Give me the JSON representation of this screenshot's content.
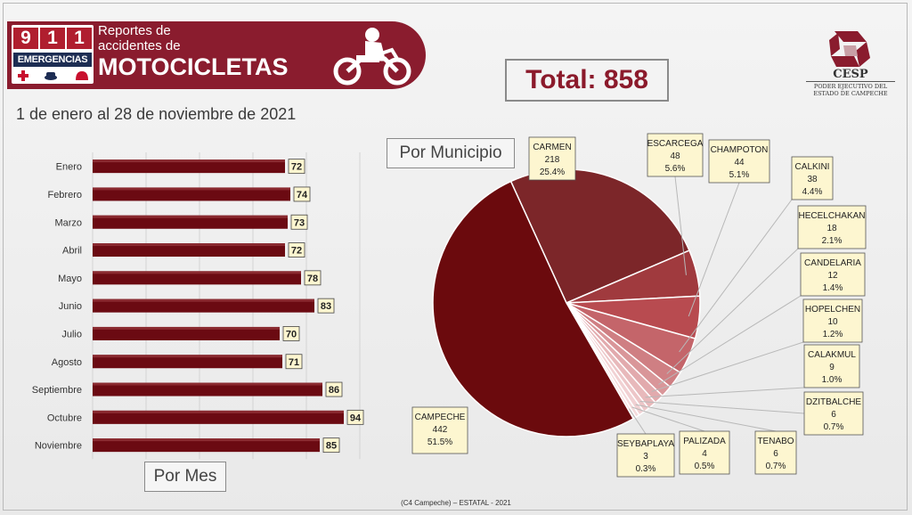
{
  "header": {
    "logo_digits": [
      "9",
      "1",
      "1"
    ],
    "logo_subtext": "EMERGENCIAS",
    "subtitle_line1": "Reportes de",
    "subtitle_line2": "accidentes de",
    "title": "MOTOCICLETAS"
  },
  "org": {
    "name": "CESP",
    "line1": "PODER EJECUTIVO DEL",
    "line2": "ESTADO DE CAMPECHE"
  },
  "total_label": "Total: 858",
  "date_range": "1 de enero al 28 de noviembre de 2021",
  "source": "(C4 Campeche) – ESTATAL - 2021",
  "colors": {
    "brand": "#8a1c2e",
    "bar": "#6b0a12",
    "label_bg": "#fdf6d0"
  },
  "chart_data": [
    {
      "type": "bar",
      "orientation": "horizontal",
      "title": "Por Mes",
      "categories": [
        "Enero",
        "Febrero",
        "Marzo",
        "Abril",
        "Mayo",
        "Junio",
        "Julio",
        "Agosto",
        "Septiembre",
        "Octubre",
        "Noviembre"
      ],
      "values": [
        72,
        74,
        73,
        72,
        78,
        83,
        70,
        71,
        86,
        94,
        85
      ],
      "xlim": [
        0,
        100
      ],
      "grid": true
    },
    {
      "type": "pie",
      "title": "Por Municipio",
      "slices": [
        {
          "label": "CAMPECHE",
          "value": 442,
          "percent": "51.5%",
          "color": "#6b0a0d"
        },
        {
          "label": "CARMEN",
          "value": 218,
          "percent": "25.4%",
          "color": "#7c2629"
        },
        {
          "label": "ESCARCEGA",
          "value": 48,
          "percent": "5.6%",
          "color": "#a03a3e"
        },
        {
          "label": "CHAMPOTON",
          "value": 44,
          "percent": "5.1%",
          "color": "#b84b50"
        },
        {
          "label": "CALKINI",
          "value": 38,
          "percent": "4.4%",
          "color": "#c4656a"
        },
        {
          "label": "HECELCHAKAN",
          "value": 18,
          "percent": "2.1%",
          "color": "#cf7f83"
        },
        {
          "label": "CANDELARIA",
          "value": 12,
          "percent": "1.4%",
          "color": "#d99699"
        },
        {
          "label": "HOPELCHEN",
          "value": 10,
          "percent": "1.2%",
          "color": "#e2aaad"
        },
        {
          "label": "CALAKMUL",
          "value": 9,
          "percent": "1.0%",
          "color": "#e8b9bb"
        },
        {
          "label": "DZITBALCHE",
          "value": 6,
          "percent": "0.7%",
          "color": "#edc6c8"
        },
        {
          "label": "TENABO",
          "value": 6,
          "percent": "0.7%",
          "color": "#f1d1d3"
        },
        {
          "label": "PALIZADA",
          "value": 4,
          "percent": "0.5%",
          "color": "#f4dadb"
        },
        {
          "label": "SEYBAPLAYA",
          "value": 3,
          "percent": "0.3%",
          "color": "#f7e2e3"
        }
      ]
    }
  ]
}
